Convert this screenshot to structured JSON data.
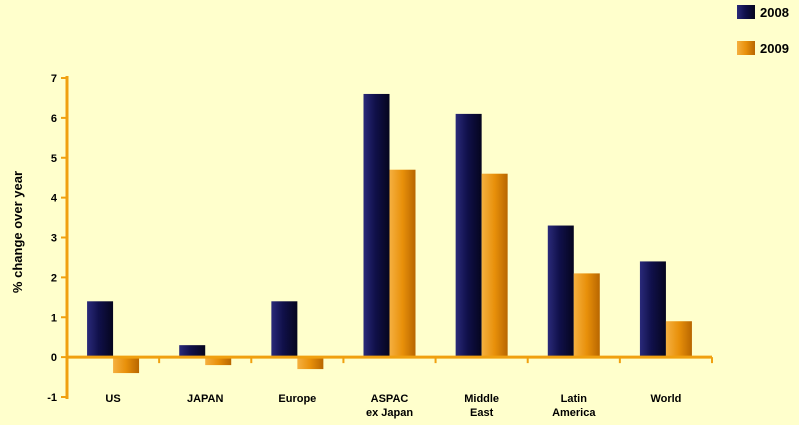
{
  "chart_data": {
    "type": "bar",
    "title": "",
    "xlabel": "",
    "ylabel": "% change over year",
    "ylim": [
      -1,
      7
    ],
    "yticks": [
      "-1",
      "0",
      "1",
      "2",
      "3",
      "4",
      "5",
      "6",
      "7"
    ],
    "categories": [
      [
        "US"
      ],
      [
        "JAPAN"
      ],
      [
        "Europe"
      ],
      [
        "ASPAC",
        "ex Japan"
      ],
      [
        "Middle",
        "East"
      ],
      [
        "Latin",
        "America"
      ],
      [
        "World"
      ]
    ],
    "series": [
      {
        "name": "2008",
        "color": "#10104A",
        "values": [
          1.4,
          0.3,
          1.4,
          6.6,
          6.1,
          3.3,
          2.4
        ]
      },
      {
        "name": "2009",
        "color": "#E8900A",
        "values": [
          -0.4,
          -0.2,
          -0.3,
          4.7,
          4.6,
          2.1,
          0.9
        ]
      }
    ],
    "legend_position": "top-right",
    "grid": false,
    "colors": {
      "background": "#FFFFCC",
      "axis": "#F0A010"
    }
  }
}
